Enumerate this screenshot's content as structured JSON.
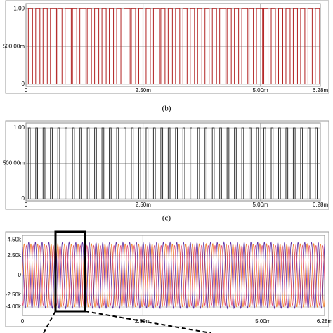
{
  "chart_data": [
    {
      "type": "pulse",
      "color": "#b22222",
      "high": 1,
      "xlim": [
        0,
        0.00628
      ],
      "ylim": [
        0,
        1.04
      ],
      "xticks": [
        {
          "value": 0,
          "label": "0"
        },
        {
          "value": 0.0025,
          "label": "2.50m"
        },
        {
          "value": 0.005,
          "label": "5.00m"
        },
        {
          "value": 0.00628,
          "label": "6.28m"
        }
      ],
      "yticks": [
        {
          "value": 0,
          "label": "0"
        },
        {
          "value": 0.5,
          "label": "500.00m"
        },
        {
          "value": 1,
          "label": "1.00"
        }
      ],
      "rises": [
        5e-05,
        0.000207,
        0.000364,
        0.000521,
        0.000678,
        0.000835,
        0.000992,
        0.001149,
        0.001306,
        0.001463,
        0.00162,
        0.001777,
        0.001934,
        0.002091,
        0.002248,
        0.002405,
        0.002562,
        0.002719,
        0.002876,
        0.003033,
        0.00319,
        0.003347,
        0.003504,
        0.003661,
        0.003818,
        0.003975,
        0.004132,
        0.004289,
        0.004446,
        0.004603,
        0.00476,
        0.004917,
        0.005074,
        0.005231,
        0.005388,
        0.005545,
        0.005702,
        0.005859,
        0.006016,
        0.006173
      ],
      "falls": [
        0.00014,
        0.000297,
        0.000454,
        0.000651,
        0.000768,
        0.000965,
        0.001082,
        0.001279,
        0.001396,
        0.001553,
        0.00171,
        0.001867,
        0.002024,
        0.002221,
        0.002338,
        0.002495,
        0.002652,
        0.002849,
        0.002966,
        0.003123,
        0.00328,
        0.003437,
        0.003594,
        0.003751,
        0.003908,
        0.004065,
        0.004262,
        0.004379,
        0.004536,
        0.004733,
        0.00485,
        0.005047,
        0.005164,
        0.005321,
        0.005478,
        0.005635,
        0.005792,
        0.005949,
        0.006106,
        0.006263
      ],
      "caption": "(b)"
    },
    {
      "type": "pulse",
      "color": "#333333",
      "high": 1,
      "xlim": [
        0,
        0.00628
      ],
      "ylim": [
        0,
        1.04
      ],
      "xticks": [
        {
          "value": 0,
          "label": "0"
        },
        {
          "value": 0.0025,
          "label": "2.50m"
        },
        {
          "value": 0.005,
          "label": "5.00m"
        },
        {
          "value": 0.00628,
          "label": "6.28m"
        }
      ],
      "yticks": [
        {
          "value": 0,
          "label": "0"
        },
        {
          "value": 0.5,
          "label": "500.00m"
        },
        {
          "value": 1,
          "label": "1.00"
        }
      ],
      "rises": [
        5e-05,
        0.000207,
        0.000364,
        0.000521,
        0.000678,
        0.000835,
        0.000992,
        0.001149,
        0.001306,
        0.001463,
        0.00162,
        0.001777,
        0.001934,
        0.002091,
        0.002248,
        0.002405,
        0.002562,
        0.002719,
        0.002876,
        0.003033,
        0.00319,
        0.003347,
        0.003504,
        0.003661,
        0.003818,
        0.003975,
        0.004132,
        0.004289,
        0.004446,
        0.004603,
        0.00476,
        0.004917,
        0.005074,
        0.005231,
        0.005388,
        0.005545,
        0.005702,
        0.005859,
        0.006016,
        0.006173
      ],
      "falls": [
        9e-05,
        0.000247,
        0.000404,
        0.000561,
        0.000718,
        0.000875,
        0.001032,
        0.001189,
        0.001346,
        0.001503,
        0.00166,
        0.001817,
        0.001974,
        0.002131,
        0.002288,
        0.002445,
        0.002602,
        0.002759,
        0.002916,
        0.003073,
        0.00323,
        0.003387,
        0.003544,
        0.003701,
        0.003858,
        0.004015,
        0.004172,
        0.004329,
        0.004486,
        0.004643,
        0.0048,
        0.004957,
        0.005114,
        0.005271,
        0.005428,
        0.005585,
        0.005742,
        0.005899,
        0.006056,
        0.006213
      ],
      "caption": "(c)"
    },
    {
      "type": "sine",
      "xlim": [
        0,
        0.00628
      ],
      "ylim": [
        -4800,
        4800
      ],
      "xticks": [
        {
          "value": 0,
          "label": "0"
        },
        {
          "value": 0.0025,
          "label": "2.50m"
        },
        {
          "value": 0.005,
          "label": "5.00m"
        },
        {
          "value": 0.00628,
          "label": "6.28m"
        }
      ],
      "yticks": [
        {
          "value": 4500,
          "label": "4.50k"
        },
        {
          "value": 2500,
          "label": "2.50k"
        },
        0,
        {
          "value": -2500,
          "label": "-2.50k"
        },
        {
          "value": -4000,
          "label": "-4.00k"
        }
      ],
      "series": [
        {
          "color": "#f08030",
          "amplitude": 4000,
          "period": 0.00014,
          "phase": 0
        },
        {
          "color": "#5a2aa0",
          "amplitude": 4200,
          "period": 0.00014,
          "phase": 120
        },
        {
          "color": "#e05078",
          "amplitude": 3800,
          "period": 0.00014,
          "phase": 240
        }
      ]
    }
  ]
}
